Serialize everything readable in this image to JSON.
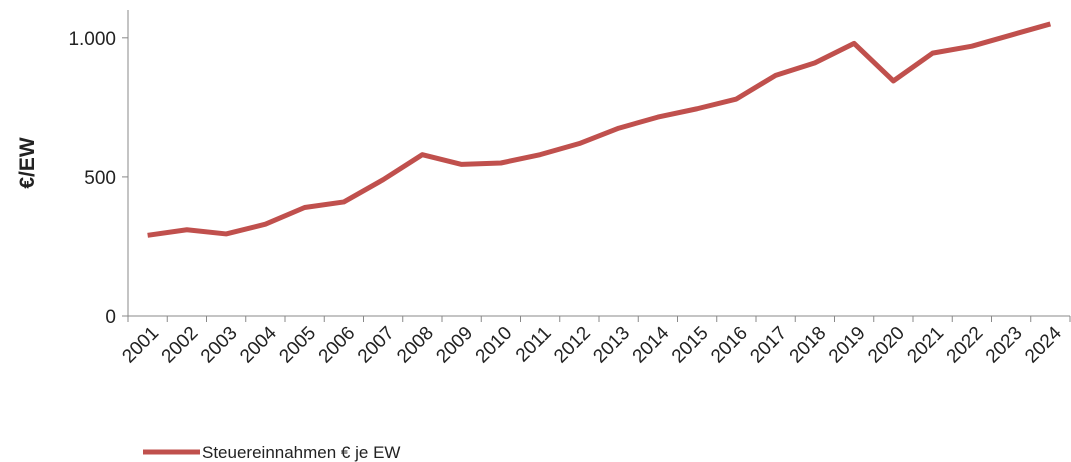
{
  "chart_data": {
    "type": "line",
    "y_label": "€/EW",
    "categories": [
      "2001",
      "2002",
      "2003",
      "2004",
      "2005",
      "2006",
      "2007",
      "2008",
      "2009",
      "2010",
      "2011",
      "2012",
      "2013",
      "2014",
      "2015",
      "2016",
      "2017",
      "2018",
      "2019",
      "2020",
      "2021",
      "2022",
      "2023",
      "2024"
    ],
    "series": [
      {
        "name": "Steuereinnahmen € je EW",
        "color": "#c0504d",
        "values": [
          290,
          310,
          295,
          330,
          390,
          410,
          490,
          580,
          545,
          550,
          580,
          620,
          675,
          715,
          745,
          780,
          865,
          910,
          980,
          845,
          945,
          970,
          1010,
          1050
        ]
      }
    ],
    "ylim": [
      0,
      1100
    ],
    "yticks": [
      0,
      500,
      {
        "value": 1000,
        "label": "1.000"
      }
    ],
    "grid": false,
    "legend": "bottom-left"
  }
}
